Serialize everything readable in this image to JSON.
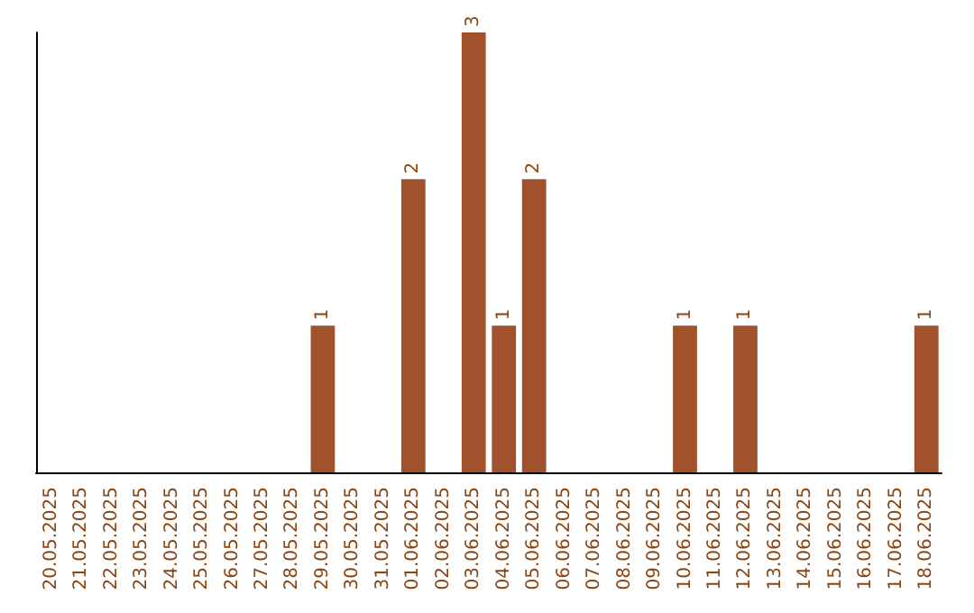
{
  "chart_data": {
    "type": "bar",
    "categories": [
      "20.05.2025",
      "21.05.2025",
      "22.05.2025",
      "23.05.2025",
      "24.05.2025",
      "25.05.2025",
      "26.05.2025",
      "27.05.2025",
      "28.05.2025",
      "29.05.2025",
      "30.05.2025",
      "31.05.2025",
      "01.06.2025",
      "02.06.2025",
      "03.06.2025",
      "04.06.2025",
      "05.06.2025",
      "06.06.2025",
      "07.06.2025",
      "08.06.2025",
      "09.06.2025",
      "10.06.2025",
      "11.06.2025",
      "12.06.2025",
      "13.06.2025",
      "14.06.2025",
      "15.06.2025",
      "16.06.2025",
      "17.06.2025",
      "18.06.2025"
    ],
    "values": [
      0,
      0,
      0,
      0,
      0,
      0,
      0,
      0,
      0,
      1,
      0,
      0,
      2,
      0,
      3,
      1,
      2,
      0,
      0,
      0,
      0,
      1,
      0,
      1,
      0,
      0,
      0,
      0,
      0,
      1
    ],
    "value_labels": [
      null,
      null,
      null,
      null,
      null,
      null,
      null,
      null,
      null,
      "1",
      null,
      null,
      "2",
      null,
      "3",
      "1",
      "2",
      null,
      null,
      null,
      null,
      "1",
      null,
      "1",
      null,
      null,
      null,
      null,
      null,
      "1"
    ],
    "color": "#a0522d",
    "grid": false,
    "tick_labels": "x"
  }
}
